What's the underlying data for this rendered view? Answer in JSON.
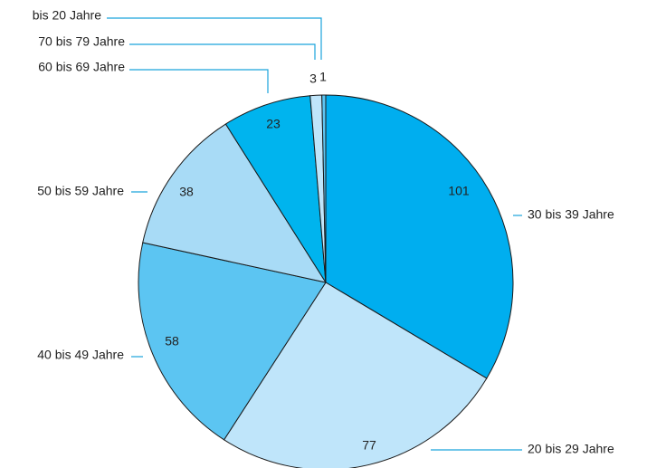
{
  "chart_data": {
    "type": "pie",
    "categories": [
      "30 bis 39 Jahre",
      "20 bis 29 Jahre",
      "40 bis 49 Jahre",
      "50 bis 59 Jahre",
      "60 bis 69 Jahre",
      "70 bis 79 Jahre",
      "bis 20 Jahre"
    ],
    "values": [
      101,
      77,
      58,
      38,
      23,
      3,
      1
    ],
    "colors": [
      "#00aeef",
      "#bfe5fa",
      "#5cc5f2",
      "#a8dbf6",
      "#00b4ee",
      "#bfe5fa",
      "#5cc5f2"
    ]
  }
}
